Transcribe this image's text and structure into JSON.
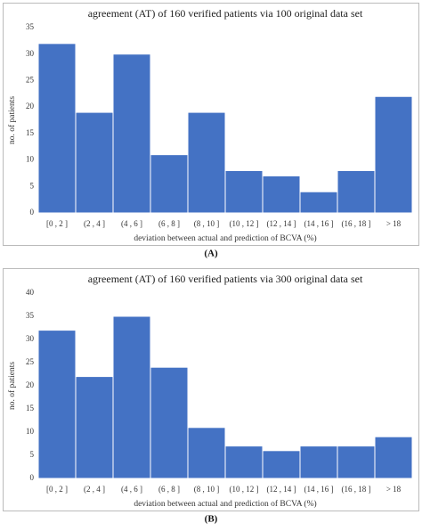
{
  "chart_data": [
    {
      "type": "bar",
      "title": "agreement (AT) of 160 verified patients via 100 original data set",
      "x_label": "deviation between actual and prediction of BCVA (%)",
      "y_label": "no. of patients",
      "panel_label": "(A)",
      "categories": [
        "[0 , 2 ]",
        "(2 , 4 ]",
        "(4 , 6 ]",
        "(6 , 8 ]",
        "(8 , 10 ]",
        "(10 , 12 ]",
        "(12 , 14 ]",
        "(14 , 16 ]",
        "(16 , 18 ]",
        "> 18"
      ],
      "values": [
        32,
        19,
        30,
        11,
        19,
        8,
        7,
        4,
        8,
        22
      ],
      "color": "#4472c4",
      "ylim": [
        0,
        35
      ],
      "yticks": [
        0,
        5,
        10,
        15,
        20,
        25,
        30,
        35
      ]
    },
    {
      "type": "bar",
      "title": "agreement (AT) of 160 verified patients via 300 original data set",
      "x_label": "deviation between actual and prediction of BCVA (%)",
      "y_label": "no. of patients",
      "panel_label": "(B)",
      "categories": [
        "[0 , 2 ]",
        "(2 , 4 ]",
        "(4 , 6 ]",
        "(6 , 8 ]",
        "(8 , 10 ]",
        "(10 , 12 ]",
        "(12 , 14 ]",
        "(14 , 16 ]",
        "(16 , 18 ]",
        "> 18"
      ],
      "values": [
        32,
        22,
        35,
        24,
        11,
        7,
        6,
        7,
        7,
        9
      ],
      "color": "#4472c4",
      "ylim": [
        0,
        40
      ],
      "yticks": [
        0,
        5,
        10,
        15,
        20,
        25,
        30,
        35,
        40
      ]
    }
  ]
}
